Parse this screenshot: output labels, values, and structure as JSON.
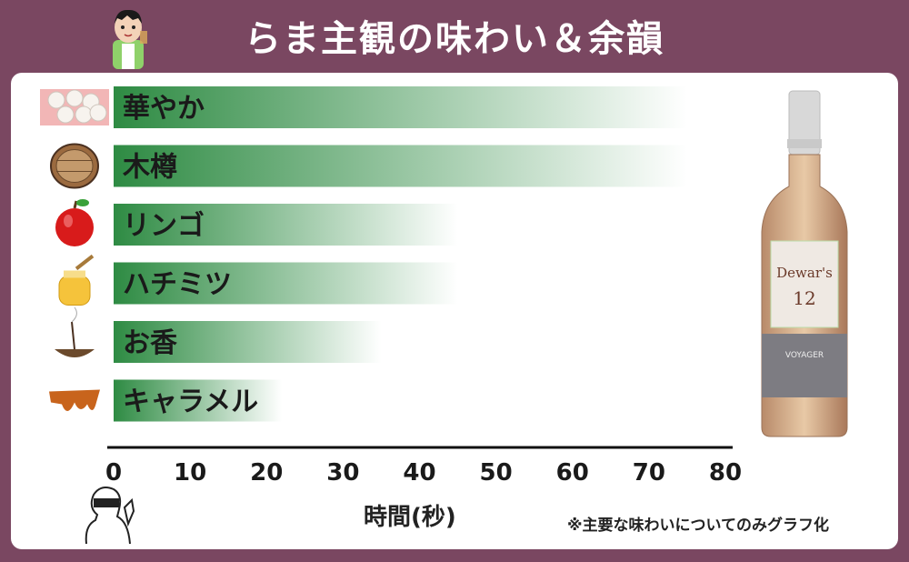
{
  "header": {
    "title": "らま主観の味わい＆余韻"
  },
  "chart_data": {
    "type": "bar",
    "orientation": "horizontal",
    "categories": [
      "華やか",
      "木樽",
      "リンゴ",
      "ハチミツ",
      "お香",
      "キャラメル"
    ],
    "category_icons": [
      "flower-icon",
      "barrel-icon",
      "apple-icon",
      "honey-jar-icon",
      "incense-icon",
      "caramel-icon"
    ],
    "values": [
      75,
      75,
      45,
      45,
      35,
      22
    ],
    "xlabel": "時間(秒)",
    "xlim": [
      0,
      80
    ],
    "xticks": [
      0,
      10,
      20,
      30,
      40,
      50,
      60,
      70,
      80
    ],
    "bar_color_start": "#2e8b43",
    "bar_color_end": "#ffffff",
    "grid": false
  },
  "footnote": "※主要な味わいについてのみグラフ化",
  "bottle": {
    "brand": "Dewar's",
    "age": "12",
    "sub": "VOYAGER"
  },
  "colors": {
    "background": "#7a4761",
    "panel": "#ffffff"
  }
}
